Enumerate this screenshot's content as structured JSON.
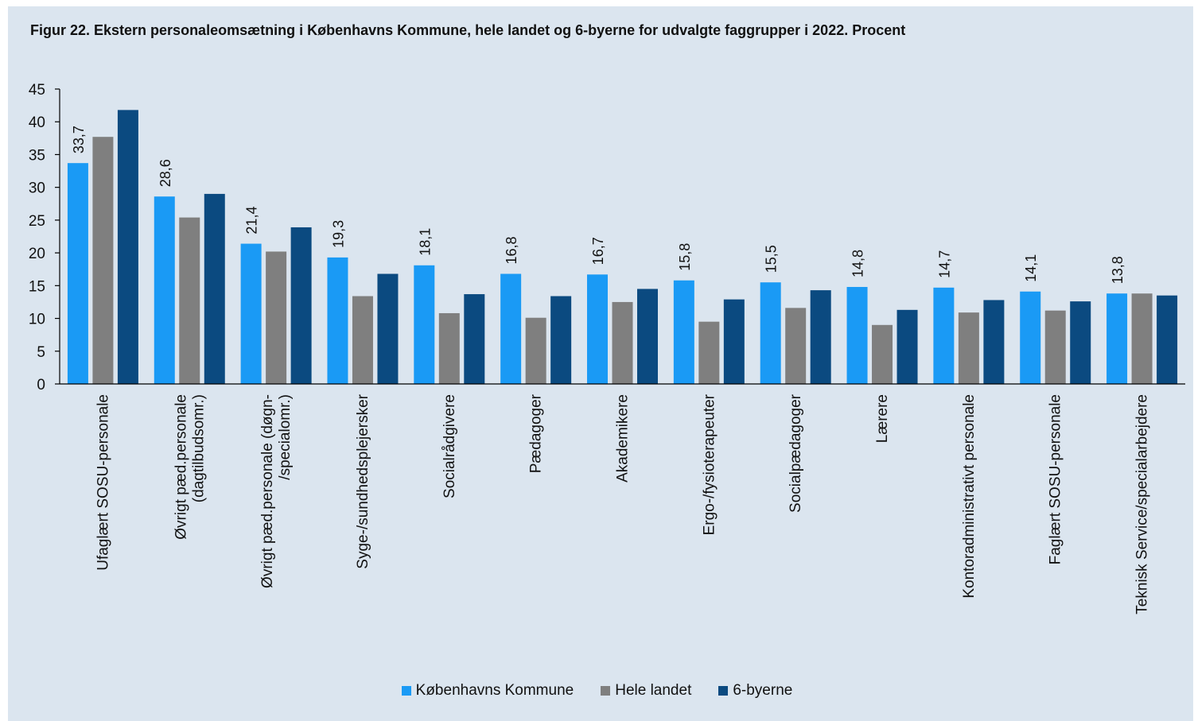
{
  "chart_data": {
    "type": "bar",
    "title": "Figur 22. Ekstern personaleomsætning i Københavns Kommune, hele landet og 6-byerne for udvalgte faggrupper i 2022. Procent",
    "xlabel": "",
    "ylabel": "",
    "ylim": [
      0,
      45
    ],
    "yticks": [
      "0",
      "5",
      "10",
      "15",
      "20",
      "25",
      "30",
      "35",
      "40",
      "45"
    ],
    "grid": false,
    "legend_position": "bottom",
    "categories": [
      [
        "Ufaglært SOSU-personale"
      ],
      [
        "Øvrigt pæd.personale",
        "(dagtilbudsomr.)"
      ],
      [
        "Øvrigt pæd.personale (døgn-",
        "/specialomr.)"
      ],
      [
        "Syge-/sundhedsplejersker"
      ],
      [
        "Socialrådgivere"
      ],
      [
        "Pædagoger"
      ],
      [
        "Akademikere"
      ],
      [
        "Ergo-/fysioterapeuter"
      ],
      [
        "Socialpædagoger"
      ],
      [
        "Lærere"
      ],
      [
        "Kontoradministrativt personale"
      ],
      [
        "Faglært SOSU-personale"
      ],
      [
        "Teknisk Service/specialarbejdere"
      ]
    ],
    "series": [
      {
        "name": "Københavns Kommune",
        "color": "#1a9af5",
        "values": [
          33.7,
          28.6,
          21.4,
          19.3,
          18.1,
          16.8,
          16.7,
          15.8,
          15.5,
          14.8,
          14.7,
          14.1,
          13.8
        ],
        "labels": [
          "33,7",
          "28,6",
          "21,4",
          "19,3",
          "18,1",
          "16,8",
          "16,7",
          "15,8",
          "15,5",
          "14,8",
          "14,7",
          "14,1",
          "13,8"
        ]
      },
      {
        "name": "Hele landet",
        "color": "#7f7f7f",
        "values": [
          37.7,
          25.4,
          20.2,
          13.4,
          10.8,
          10.1,
          12.5,
          9.5,
          11.6,
          9.0,
          10.9,
          11.2,
          13.8
        ]
      },
      {
        "name": "6-byerne",
        "color": "#0b4a80",
        "values": [
          41.8,
          29.0,
          23.9,
          16.8,
          13.7,
          13.4,
          14.5,
          12.9,
          14.3,
          11.3,
          12.8,
          12.6,
          13.5
        ]
      }
    ]
  }
}
